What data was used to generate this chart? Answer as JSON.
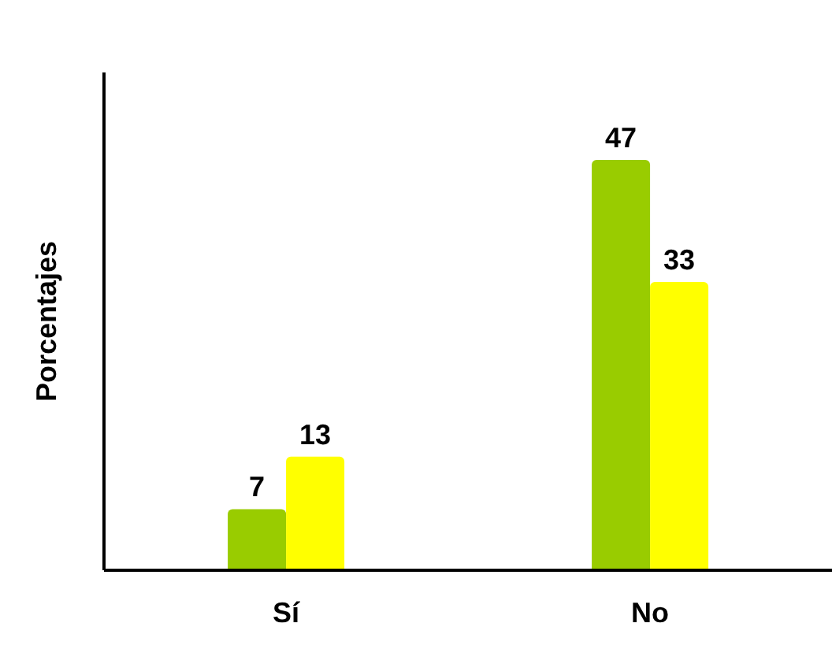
{
  "chart_data": {
    "type": "bar",
    "ylabel": "Porcentajes",
    "categories": [
      "Sí",
      "No"
    ],
    "series": [
      {
        "color": "#99cc00",
        "values": [
          7,
          47
        ]
      },
      {
        "color": "#ffff00",
        "values": [
          13,
          33
        ]
      }
    ],
    "ylim": [
      0,
      57
    ],
    "tick_labels": "x",
    "data_labels": true,
    "grid": false,
    "legend": false
  }
}
